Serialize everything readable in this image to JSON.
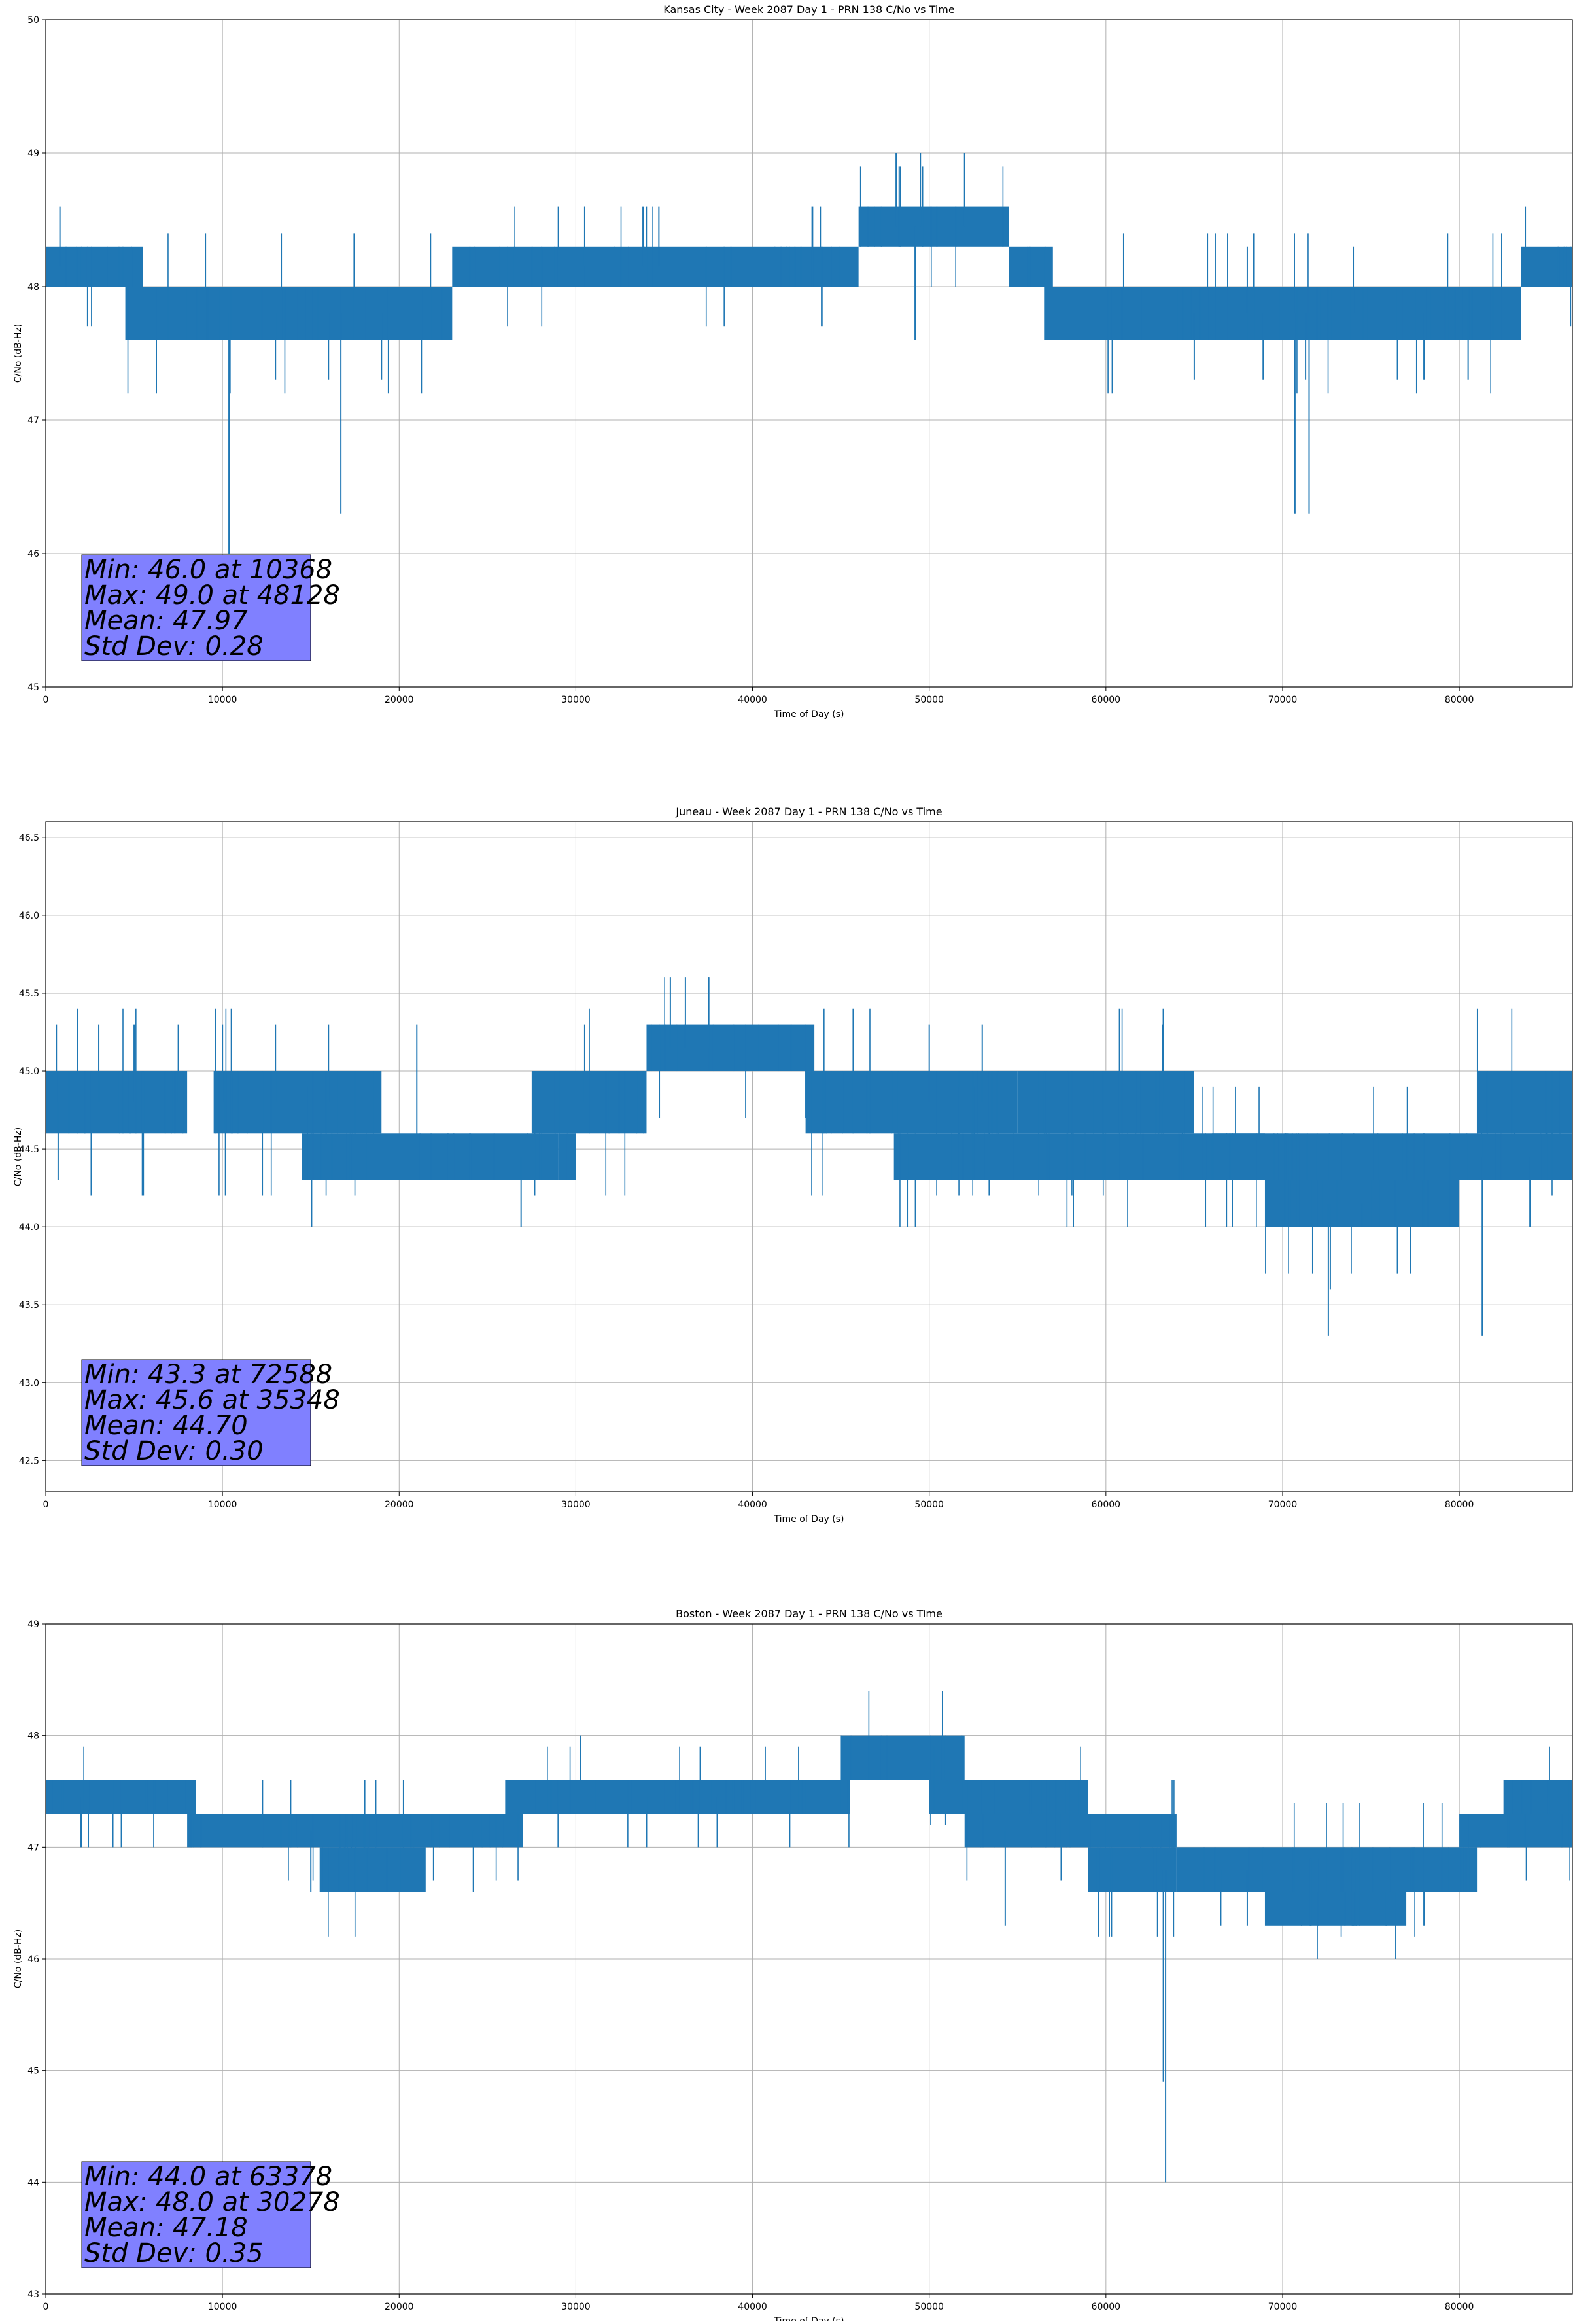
{
  "figure": {
    "background": "#ffffff",
    "line_color": "#1f77b4",
    "box_color": "#8080ff",
    "grid_color": "#b0b0b0"
  },
  "chart_data": [
    {
      "type": "line",
      "title": "Kansas City - Week 2087 Day 1 - PRN 138 C/No vs Time",
      "xlabel": "Time of Day (s)",
      "ylabel": "C/No (dB-Hz)",
      "xlim": [
        0,
        86400
      ],
      "ylim": [
        45,
        50
      ],
      "xticks": [
        0,
        10000,
        20000,
        30000,
        40000,
        50000,
        60000,
        70000,
        80000
      ],
      "yticks": [
        45,
        46,
        47,
        48,
        49,
        50
      ],
      "yticklabels": [
        "45",
        "46",
        "47",
        "48",
        "49",
        "50"
      ],
      "grid": true,
      "legend": "none",
      "stats": [
        "Min: 46.0 at 10368",
        "Max: 49.0 at 48128",
        "Mean: 47.97",
        "Std Dev: 0.28"
      ],
      "min": {
        "x": 10368,
        "y": 46.0
      },
      "max": {
        "x": 48128,
        "y": 49.0
      },
      "series": [
        {
          "segments": [
            {
              "x": [
                0,
                5500
              ],
              "low": 48.0,
              "high": 48.3
            },
            {
              "x": [
                4500,
                23000
              ],
              "low": 47.6,
              "high": 48.0
            },
            {
              "x": [
                23000,
                46000
              ],
              "low": 48.0,
              "high": 48.3
            },
            {
              "x": [
                46000,
                54500
              ],
              "low": 48.3,
              "high": 48.6
            },
            {
              "x": [
                54500,
                57000
              ],
              "low": 48.0,
              "high": 48.3
            },
            {
              "x": [
                56500,
                83500
              ],
              "low": 47.6,
              "high": 48.0
            },
            {
              "x": [
                83500,
                86400
              ],
              "low": 48.0,
              "high": 48.3
            }
          ],
          "spikes": [
            {
              "x": 800,
              "y": 48.6
            },
            {
              "x": 10368,
              "y": 46.0
            },
            {
              "x": 16700,
              "y": 46.3
            },
            {
              "x": 13000,
              "y": 47.3
            },
            {
              "x": 16000,
              "y": 47.3
            },
            {
              "x": 19000,
              "y": 47.3
            },
            {
              "x": 30500,
              "y": 48.6
            },
            {
              "x": 33800,
              "y": 48.6
            },
            {
              "x": 34700,
              "y": 48.6
            },
            {
              "x": 48128,
              "y": 49.0
            },
            {
              "x": 49500,
              "y": 49.0
            },
            {
              "x": 52000,
              "y": 49.0
            },
            {
              "x": 49200,
              "y": 47.6
            },
            {
              "x": 65000,
              "y": 47.3
            },
            {
              "x": 68900,
              "y": 47.3
            },
            {
              "x": 70700,
              "y": 46.3
            },
            {
              "x": 71500,
              "y": 46.3
            },
            {
              "x": 71300,
              "y": 47.3
            },
            {
              "x": 78000,
              "y": 47.3
            },
            {
              "x": 80500,
              "y": 47.3
            },
            {
              "x": 76500,
              "y": 47.3
            },
            {
              "x": 68000,
              "y": 48.3
            },
            {
              "x": 74000,
              "y": 48.3
            }
          ]
        }
      ]
    },
    {
      "type": "line",
      "title": "Juneau - Week 2087 Day 1 - PRN 138 C/No vs Time",
      "xlabel": "Time of Day (s)",
      "ylabel": "C/No (dB-Hz)",
      "xlim": [
        0,
        86400
      ],
      "ylim": [
        42.3,
        46.6
      ],
      "xticks": [
        0,
        10000,
        20000,
        30000,
        40000,
        50000,
        60000,
        70000,
        80000
      ],
      "yticks": [
        42.5,
        43.0,
        43.5,
        44.0,
        44.5,
        45.0,
        45.5,
        46.0,
        46.5
      ],
      "yticklabels": [
        "42.5",
        "43.0",
        "43.5",
        "44.0",
        "44.5",
        "45.0",
        "45.5",
        "46.0",
        "46.5"
      ],
      "grid": true,
      "legend": "none",
      "stats": [
        "Min: 43.3 at 72588",
        "Max: 45.6 at 35348",
        "Mean: 44.70",
        "Std Dev: 0.30"
      ],
      "min": {
        "x": 72588,
        "y": 43.3
      },
      "max": {
        "x": 35348,
        "y": 45.6
      },
      "series": [
        {
          "segments": [
            {
              "x": [
                0,
                8000
              ],
              "low": 44.6,
              "high": 45.0
            },
            {
              "x": [
                9500,
                19000
              ],
              "low": 44.6,
              "high": 45.0
            },
            {
              "x": [
                14500,
                29000
              ],
              "low": 44.3,
              "high": 44.6
            },
            {
              "x": [
                27500,
                34000
              ],
              "low": 44.6,
              "high": 45.0
            },
            {
              "x": [
                29000,
                30000
              ],
              "low": 44.3,
              "high": 44.6
            },
            {
              "x": [
                34000,
                43500
              ],
              "low": 45.0,
              "high": 45.3
            },
            {
              "x": [
                43000,
                55000
              ],
              "low": 44.6,
              "high": 45.0
            },
            {
              "x": [
                48000,
                69000
              ],
              "low": 44.3,
              "high": 44.6
            },
            {
              "x": [
                55000,
                65000
              ],
              "low": 44.6,
              "high": 45.0
            },
            {
              "x": [
                66000,
                80500
              ],
              "low": 44.3,
              "high": 44.6
            },
            {
              "x": [
                69000,
                80000
              ],
              "low": 44.0,
              "high": 44.3
            },
            {
              "x": [
                80500,
                86400
              ],
              "low": 44.3,
              "high": 44.6
            },
            {
              "x": [
                81000,
                86400
              ],
              "low": 44.6,
              "high": 45.0
            }
          ],
          "spikes": [
            {
              "x": 600,
              "y": 45.3
            },
            {
              "x": 700,
              "y": 44.3
            },
            {
              "x": 3000,
              "y": 45.3
            },
            {
              "x": 5000,
              "y": 45.3
            },
            {
              "x": 7500,
              "y": 45.3
            },
            {
              "x": 10000,
              "y": 45.3
            },
            {
              "x": 13000,
              "y": 45.3
            },
            {
              "x": 16000,
              "y": 45.3
            },
            {
              "x": 21000,
              "y": 45.3
            },
            {
              "x": 26900,
              "y": 44.0
            },
            {
              "x": 30500,
              "y": 45.3
            },
            {
              "x": 35348,
              "y": 45.6
            },
            {
              "x": 36200,
              "y": 45.6
            },
            {
              "x": 37500,
              "y": 45.6
            },
            {
              "x": 50000,
              "y": 45.3
            },
            {
              "x": 53000,
              "y": 45.3
            },
            {
              "x": 63200,
              "y": 45.3
            },
            {
              "x": 72588,
              "y": 43.3
            },
            {
              "x": 72700,
              "y": 43.6
            },
            {
              "x": 74500,
              "y": 44.0
            },
            {
              "x": 76500,
              "y": 43.7
            },
            {
              "x": 81300,
              "y": 43.3
            },
            {
              "x": 84000,
              "y": 44.0
            }
          ]
        }
      ]
    },
    {
      "type": "line",
      "title": "Boston - Week 2087 Day 1 - PRN 138 C/No vs Time",
      "xlabel": "Time of Day (s)",
      "ylabel": "C/No (dB-Hz)",
      "xlim": [
        0,
        86400
      ],
      "ylim": [
        43,
        49
      ],
      "xticks": [
        0,
        10000,
        20000,
        30000,
        40000,
        50000,
        60000,
        70000,
        80000
      ],
      "yticks": [
        43,
        44,
        45,
        46,
        47,
        48,
        49
      ],
      "yticklabels": [
        "43",
        "44",
        "45",
        "46",
        "47",
        "48",
        "49"
      ],
      "grid": true,
      "legend": "none",
      "stats": [
        "Min: 44.0 at 63378",
        "Max: 48.0 at 30278",
        "Mean: 47.18",
        "Std Dev: 0.35"
      ],
      "min": {
        "x": 63378,
        "y": 44.0
      },
      "max": {
        "x": 30278,
        "y": 48.0
      },
      "series": [
        {
          "segments": [
            {
              "x": [
                0,
                8500
              ],
              "low": 47.3,
              "high": 47.6
            },
            {
              "x": [
                8000,
                27000
              ],
              "low": 47.0,
              "high": 47.3
            },
            {
              "x": [
                15500,
                21500
              ],
              "low": 46.6,
              "high": 47.0
            },
            {
              "x": [
                26000,
                45500
              ],
              "low": 47.3,
              "high": 47.6
            },
            {
              "x": [
                45000,
                52000
              ],
              "low": 47.6,
              "high": 48.0
            },
            {
              "x": [
                50000,
                59000
              ],
              "low": 47.3,
              "high": 47.6
            },
            {
              "x": [
                52000,
                64000
              ],
              "low": 47.0,
              "high": 47.3
            },
            {
              "x": [
                59000,
                64000
              ],
              "low": 46.6,
              "high": 47.0
            },
            {
              "x": [
                64000,
                81000
              ],
              "low": 46.6,
              "high": 47.0
            },
            {
              "x": [
                69000,
                77000
              ],
              "low": 46.3,
              "high": 46.6
            },
            {
              "x": [
                80000,
                86400
              ],
              "low": 47.0,
              "high": 47.3
            },
            {
              "x": [
                82500,
                86400
              ],
              "low": 47.3,
              "high": 47.6
            }
          ],
          "spikes": [
            {
              "x": 2000,
              "y": 47.0
            },
            {
              "x": 15000,
              "y": 46.6
            },
            {
              "x": 24200,
              "y": 46.6
            },
            {
              "x": 30278,
              "y": 48.0
            },
            {
              "x": 34000,
              "y": 47.0
            },
            {
              "x": 38000,
              "y": 47.0
            },
            {
              "x": 54300,
              "y": 46.3
            },
            {
              "x": 63378,
              "y": 44.0
            },
            {
              "x": 63250,
              "y": 44.9
            },
            {
              "x": 66500,
              "y": 46.3
            },
            {
              "x": 68000,
              "y": 46.3
            },
            {
              "x": 78000,
              "y": 46.3
            },
            {
              "x": 85000,
              "y": 47.6
            },
            {
              "x": 86000,
              "y": 47.6
            }
          ]
        }
      ]
    }
  ]
}
